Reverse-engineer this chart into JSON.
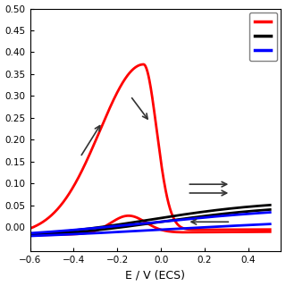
{
  "title": "",
  "xlabel": "E / V (ECS)",
  "ylabel": "",
  "xlim": [
    -0.6,
    0.55
  ],
  "ylim": [
    -0.055,
    0.5
  ],
  "yticks": [
    0.0,
    0.05,
    0.1,
    0.15,
    0.2,
    0.25,
    0.3,
    0.35,
    0.4,
    0.45,
    0.5
  ],
  "xticks": [
    -0.6,
    -0.4,
    -0.2,
    0.0,
    0.2,
    0.4
  ],
  "background_color": "#ffffff",
  "line_colors": [
    "#ff0000",
    "#000000",
    "#0000ff"
  ],
  "arrow_color": "#333333",
  "legend_colors": [
    "#ff0000",
    "#000000",
    "#0000ff"
  ],
  "figsize": [
    3.2,
    3.2
  ],
  "dpi": 100
}
